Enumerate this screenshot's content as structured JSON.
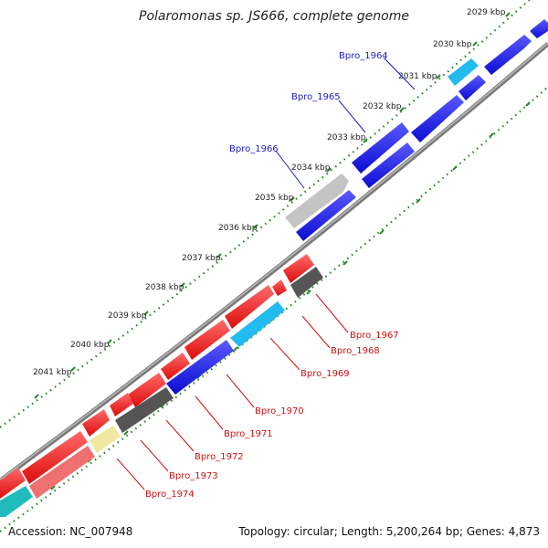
{
  "header": {
    "title": "Polaromonas sp. JS666, complete genome"
  },
  "footer": {
    "accession": "Accession: NC_007948",
    "stats": "Topology: circular; Length: 5,200,264 bp; Genes: 4,873"
  },
  "ticks": [
    "2029 kbp",
    "2030 kbp",
    "2031 kbp",
    "2032 kbp",
    "2033 kbp",
    "2034 kbp",
    "2035 kbp",
    "2036 kbp",
    "2037 kbp",
    "2038 kbp",
    "2039 kbp",
    "2040 kbp",
    "2041 kbp"
  ],
  "gene_labels_forward": [
    "Bpro_1964",
    "Bpro_1965",
    "Bpro_1966"
  ],
  "gene_labels_reverse": [
    "Bpro_1967",
    "Bpro_1968",
    "Bpro_1969",
    "Bpro_1970",
    "Bpro_1971",
    "Bpro_1972",
    "Bpro_1973",
    "Bpro_1974"
  ],
  "colors": {
    "forward_label": "#1a1ac8",
    "reverse_label": "#cc1111",
    "blue_gene": "#1010e0",
    "red_gene": "#ee1111",
    "cyan_gene": "#22bbee",
    "gray_gene": "#555555",
    "lightgray_gene": "#bfbfbf",
    "yellow_gene": "#eee8a0",
    "pink_gene": "#ee7070",
    "teal_gene": "#22bbbb",
    "backbone": "#777777",
    "tick_dots": "#2a8a2a"
  }
}
